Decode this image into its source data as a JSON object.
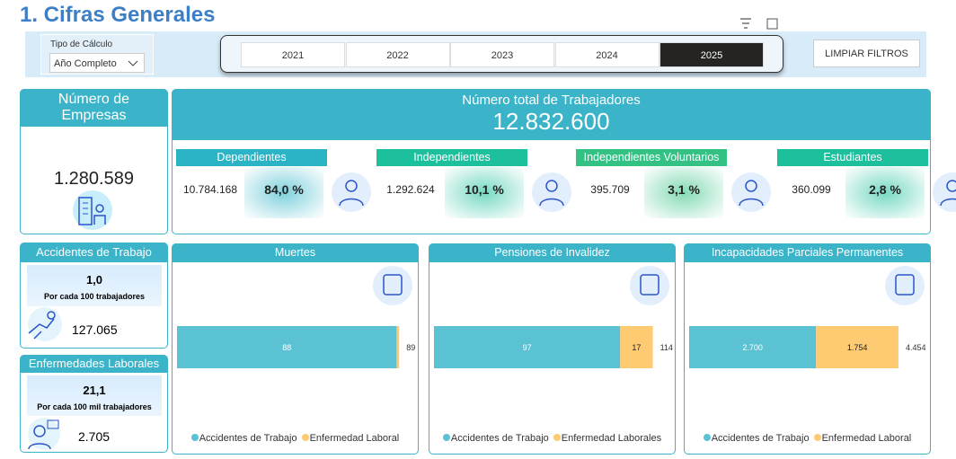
{
  "title": "1. Cifras Generales",
  "filters": {
    "calc_label": "Tipo de Cálculo",
    "calc_value": "Año Completo",
    "years": [
      "2021",
      "2022",
      "2023",
      "2024",
      "2025"
    ],
    "selected_year": 4,
    "clear": "LIMPIAR FILTROS"
  },
  "empresas": {
    "title": "Número de Empresas",
    "value": "1.280.589"
  },
  "trabajadores": {
    "title": "Número total de Trabajadores",
    "value": "12.832.600",
    "groups": [
      {
        "name": "Dependientes",
        "count": "10.784.168",
        "share": "84,0 %",
        "color": "#2bb3c6"
      },
      {
        "name": "Independientes",
        "count": "1.292.624",
        "share": "10,1 %",
        "color": "#1cc09c"
      },
      {
        "name": "Independientes Voluntarios",
        "count": "395.709",
        "share": "3,1 %",
        "color": "#34c284"
      },
      {
        "name": "Estudiantes",
        "count": "360.099",
        "share": "2,8 %",
        "color": "#1cc09c"
      }
    ]
  },
  "accidentes": {
    "title": "Accidentes de Trabajo",
    "rate": "1,0",
    "rate_note": "Por cada 100 trabajadores",
    "count": "127.065"
  },
  "enfermedades": {
    "title": "Enfermedades Laborales",
    "rate": "21,1",
    "rate_note": "Por cada 100 mil trabajadores",
    "count": "2.705"
  },
  "charts": [
    {
      "type": "bar",
      "title": "Muertes",
      "xlim": [
        0,
        90
      ],
      "total": "89",
      "series": [
        {
          "name": "Accidentes de Trabajo",
          "color": "#5bc2d4",
          "value": 88
        },
        {
          "name": "Enfermedad Laboral",
          "color": "#ffcb72",
          "value": 1
        }
      ]
    },
    {
      "type": "bar",
      "title": "Pensiones de Invalidez",
      "xlim": [
        0,
        117
      ],
      "total": "114",
      "series": [
        {
          "name": "Accidentes de Trabajo",
          "color": "#5bc2d4",
          "value": 97
        },
        {
          "name": "Enfermedad Laborales",
          "color": "#ffcb72",
          "value": 17
        }
      ]
    },
    {
      "type": "bar",
      "title": "Incapacidades Parciales Permanentes",
      "xlim": [
        0,
        4780
      ],
      "total": "4.454",
      "series": [
        {
          "name": "Accidentes de Trabajo",
          "color": "#5bc2d4",
          "value": 2700,
          "value_label": "2.700"
        },
        {
          "name": "Enfermedad Laboral",
          "color": "#ffcb72",
          "value": 1754,
          "value_label": "1.754"
        }
      ]
    }
  ]
}
